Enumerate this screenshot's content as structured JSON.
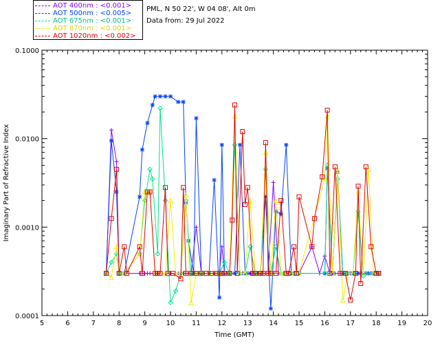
{
  "legend": [
    {
      "label": "AOT  400nm : <0.001>",
      "color": "#7f00ff"
    },
    {
      "label": "AOT  500nm : <0.005>",
      "color": "#0040ff"
    },
    {
      "label": "AOT  675nm : <0.001>",
      "color": "#00e090"
    },
    {
      "label": "AOT  870nm : <0.001>",
      "color": "#f0f000"
    },
    {
      "label": "AOT 1020nm : <0.002>",
      "color": "#e00000"
    }
  ],
  "info": {
    "location": "PML, N 50 22', W 04 08', Alt 0m",
    "date": "Data from: 29 Jul 2022"
  },
  "chart_data": {
    "type": "line",
    "xlabel": "Time (GMT)",
    "ylabel": "Imaginary Part of Refractive Index",
    "xlim": [
      5,
      20
    ],
    "ylim": [
      0.0001,
      0.1
    ],
    "yscale": "log",
    "x_ticks": [
      "5",
      "6",
      "7",
      "8",
      "9",
      "10",
      "11",
      "12",
      "13",
      "14",
      "15",
      "16",
      "17",
      "18",
      "19",
      "20"
    ],
    "y_ticks": [
      "0.0001",
      "0.0010",
      "0.0100",
      "0.1000"
    ],
    "series": [
      {
        "name": "AOT  400nm : <0.001>",
        "color": "#7f00ff",
        "marker": "plus",
        "x": [
          7.5,
          7.7,
          7.9,
          8.0,
          8.2,
          8.8,
          8.9,
          9.0,
          9.1,
          9.2,
          9.4,
          9.5,
          9.8,
          10.0,
          10.3,
          10.5,
          10.6,
          10.8,
          11.0,
          11.2,
          11.5,
          11.7,
          11.9,
          12.0,
          12.1,
          12.3,
          12.5,
          12.7,
          12.8,
          13.0,
          13.2,
          13.4,
          13.6,
          13.8,
          14.0,
          14.2,
          14.4,
          14.6,
          14.8,
          15.0,
          15.5,
          15.8,
          16.0,
          16.2,
          16.4,
          16.6,
          16.8,
          17.0,
          17.2,
          17.4,
          17.6,
          17.8,
          18.0
        ],
        "y": [
          0.0003,
          0.0125,
          0.0055,
          0.0003,
          0.0003,
          0.0003,
          0.0003,
          0.0003,
          0.0003,
          0.0003,
          0.0003,
          0.0003,
          0.0003,
          0.0003,
          0.0003,
          0.0003,
          0.0003,
          0.0003,
          0.001,
          0.0003,
          0.0003,
          0.0003,
          0.0003,
          0.0006,
          0.0003,
          0.0003,
          0.0003,
          0.0003,
          0.0003,
          0.0003,
          0.0003,
          0.0003,
          0.0003,
          0.0003,
          0.0032,
          0.0003,
          0.0003,
          0.0003,
          0.0003,
          0.0003,
          0.0006,
          0.0003,
          0.00047,
          0.0003,
          0.0003,
          0.0003,
          0.0003,
          0.0003,
          0.0003,
          0.0003,
          0.0003,
          0.0003,
          0.0003
        ]
      },
      {
        "name": "AOT  500nm : <0.005>",
        "color": "#0040ff",
        "marker": "star",
        "x": [
          7.5,
          7.7,
          7.9,
          8.0,
          8.2,
          8.8,
          8.9,
          9.1,
          9.3,
          9.4,
          9.6,
          9.8,
          10.0,
          10.3,
          10.5,
          10.6,
          10.7,
          10.9,
          11.0,
          11.2,
          11.5,
          11.7,
          11.9,
          12.0,
          12.1,
          12.3,
          12.5,
          12.7,
          12.9,
          13.1,
          13.3,
          13.5,
          13.7,
          13.9,
          14.1,
          14.3,
          14.5,
          14.7,
          14.9,
          15.0,
          16.0,
          16.1,
          16.3,
          16.5,
          16.7,
          16.9,
          17.1,
          17.3,
          17.5,
          17.7,
          17.9,
          18.1
        ],
        "y": [
          0.0003,
          0.0095,
          0.0025,
          0.0003,
          0.0003,
          0.0022,
          0.0075,
          0.015,
          0.024,
          0.03,
          0.03,
          0.03,
          0.03,
          0.026,
          0.026,
          0.0019,
          0.0007,
          0.0003,
          0.017,
          0.0003,
          0.0003,
          0.0034,
          0.00016,
          0.0085,
          0.0003,
          0.0003,
          0.0003,
          0.0085,
          0.0003,
          0.0003,
          0.0003,
          0.0003,
          0.0022,
          0.00012,
          0.0015,
          0.0014,
          0.0085,
          0.0003,
          0.0003,
          0.0003,
          0.0003,
          0.0046,
          0.0003,
          0.0042,
          0.0003,
          0.0003,
          0.0003,
          0.0003,
          0.0003,
          0.0003,
          0.0003,
          0.0003
        ]
      },
      {
        "name": "AOT  675nm : <0.001>",
        "color": "#00e090",
        "marker": "diamond",
        "x": [
          7.5,
          7.7,
          7.9,
          8.0,
          8.2,
          8.8,
          9.0,
          9.2,
          9.3,
          9.5,
          9.6,
          9.8,
          10.0,
          10.2,
          10.4,
          10.6,
          10.8,
          11.0,
          11.2,
          11.5,
          11.7,
          11.9,
          12.1,
          12.3,
          12.5,
          12.7,
          12.9,
          13.1,
          13.3,
          13.5,
          13.7,
          13.9,
          14.1,
          14.3,
          14.5,
          14.7,
          14.9,
          15.0,
          16.0,
          16.1,
          16.3,
          16.5,
          16.7,
          16.9,
          17.1,
          17.3,
          17.5,
          17.7,
          17.9,
          18.1
        ],
        "y": [
          0.0003,
          0.0004,
          0.0005,
          0.0003,
          0.0003,
          0.0005,
          0.002,
          0.0045,
          0.0035,
          0.0005,
          0.022,
          0.002,
          0.00014,
          0.00019,
          0.0003,
          0.002,
          0.0003,
          0.0003,
          0.0003,
          0.0003,
          0.0003,
          0.0003,
          0.0004,
          0.0003,
          0.0085,
          0.0003,
          0.0003,
          0.0006,
          0.0003,
          0.0003,
          0.0045,
          0.0003,
          0.0006,
          0.0003,
          0.0003,
          0.0003,
          0.0003,
          0.0003,
          0.0003,
          0.005,
          0.0003,
          0.0035,
          0.0003,
          0.0003,
          0.0003,
          0.0015,
          0.00028,
          0.0003,
          0.0003,
          0.0003
        ]
      },
      {
        "name": "AOT  870nm : <0.001>",
        "color": "#f0f000",
        "marker": "triangle",
        "x": [
          7.5,
          7.7,
          7.9,
          8.0,
          8.2,
          8.8,
          9.0,
          9.2,
          9.4,
          9.6,
          9.8,
          10.0,
          10.2,
          10.4,
          10.6,
          10.8,
          11.0,
          11.2,
          11.5,
          11.7,
          11.9,
          12.1,
          12.3,
          12.5,
          12.7,
          12.9,
          13.1,
          13.3,
          13.5,
          13.7,
          13.9,
          14.1,
          14.3,
          14.5,
          14.7,
          14.9,
          15.0,
          16.0,
          16.1,
          16.3,
          16.5,
          16.7,
          16.9,
          17.1,
          17.3,
          17.5,
          17.7,
          17.9,
          18.1
        ],
        "y": [
          0.0003,
          0.00027,
          0.0006,
          0.0003,
          0.0003,
          0.0005,
          0.0025,
          0.0025,
          0.0003,
          0.0003,
          0.0003,
          0.002,
          0.0003,
          0.0003,
          0.0023,
          0.00014,
          0.0003,
          0.0003,
          0.0003,
          0.0003,
          0.0003,
          0.0003,
          0.0003,
          0.018,
          0.0003,
          0.0003,
          0.002,
          0.0003,
          0.0003,
          0.007,
          0.0003,
          0.002,
          0.0003,
          0.0003,
          0.0003,
          0.0003,
          0.0003,
          0.0035,
          0.018,
          0.0003,
          0.0044,
          0.00015,
          0.0003,
          0.0003,
          0.0025,
          0.0003,
          0.0045,
          0.0003,
          0.0003
        ]
      },
      {
        "name": "AOT 1020nm : <0.002>",
        "color": "#e00000",
        "marker": "square",
        "x": [
          7.5,
          7.7,
          7.9,
          8.0,
          8.2,
          8.3,
          8.8,
          8.9,
          9.1,
          9.2,
          9.4,
          9.5,
          9.6,
          9.8,
          9.9,
          10.1,
          10.4,
          10.5,
          10.6,
          10.8,
          11.0,
          11.2,
          11.4,
          11.6,
          11.8,
          11.9,
          12.0,
          12.1,
          12.3,
          12.4,
          12.5,
          12.6,
          12.8,
          12.9,
          13.0,
          13.2,
          13.3,
          13.5,
          13.6,
          13.7,
          13.8,
          13.9,
          14.1,
          14.3,
          14.5,
          14.6,
          14.8,
          14.9,
          15.0,
          15.5,
          15.6,
          15.9,
          16.1,
          16.2,
          16.4,
          16.6,
          16.8,
          17.0,
          17.2,
          17.3,
          17.4,
          17.6,
          17.8,
          18.0,
          18.1
        ],
        "y": [
          0.0003,
          0.00125,
          0.0045,
          0.0003,
          0.0006,
          0.0003,
          0.0006,
          0.0003,
          0.0025,
          0.0025,
          0.0003,
          0.0003,
          0.0003,
          0.0028,
          0.0003,
          0.0003,
          0.00026,
          0.0028,
          0.0003,
          0.0003,
          0.0003,
          0.0003,
          0.0003,
          0.0003,
          0.0003,
          0.0003,
          0.0003,
          0.0003,
          0.0003,
          0.0012,
          0.024,
          0.0003,
          0.012,
          0.0018,
          0.0028,
          0.0003,
          0.0003,
          0.0003,
          0.0003,
          0.009,
          0.0003,
          0.0003,
          0.0003,
          0.002,
          0.0003,
          0.0003,
          0.0006,
          0.0003,
          0.0022,
          0.0006,
          0.00125,
          0.0037,
          0.021,
          0.0003,
          0.0048,
          0.0003,
          0.0003,
          0.00015,
          0.0003,
          0.0029,
          0.00023,
          0.0048,
          0.0006,
          0.0003,
          0.0003
        ]
      }
    ]
  }
}
